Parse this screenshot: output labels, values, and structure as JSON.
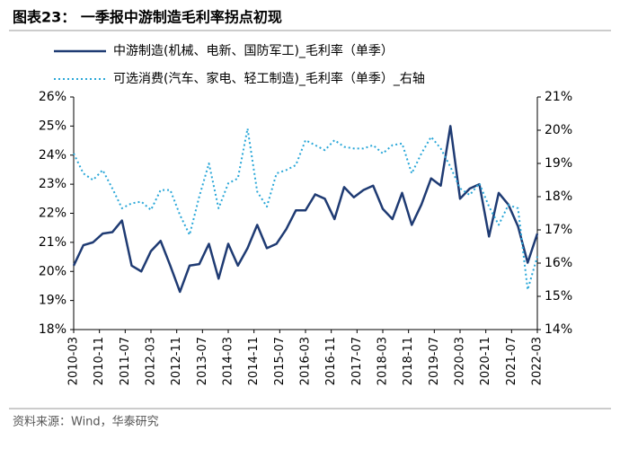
{
  "chart_data": {
    "type": "line",
    "title": "图表23：  一季报中游制造毛利率拐点初现",
    "source": "资料来源：Wind，华泰研究",
    "x": [
      "2010-03",
      "2010-06",
      "2010-09",
      "2010-12",
      "2011-03",
      "2011-06",
      "2011-09",
      "2011-12",
      "2012-03",
      "2012-06",
      "2012-09",
      "2012-12",
      "2013-03",
      "2013-06",
      "2013-09",
      "2013-12",
      "2014-03",
      "2014-06",
      "2014-09",
      "2014-12",
      "2015-03",
      "2015-06",
      "2015-09",
      "2015-12",
      "2016-03",
      "2016-06",
      "2016-09",
      "2016-12",
      "2017-03",
      "2017-06",
      "2017-09",
      "2017-12",
      "2018-03",
      "2018-06",
      "2018-09",
      "2018-12",
      "2019-03",
      "2019-06",
      "2019-09",
      "2019-12",
      "2020-03",
      "2020-06",
      "2020-09",
      "2020-12",
      "2021-03",
      "2021-06",
      "2021-09",
      "2021-12",
      "2022-03"
    ],
    "xlim": [
      "2010-03",
      "2022-03"
    ],
    "xticks": [
      "2010-03",
      "2010-11",
      "2011-07",
      "2012-03",
      "2012-11",
      "2013-07",
      "2014-03",
      "2014-11",
      "2015-07",
      "2016-03",
      "2016-11",
      "2017-07",
      "2018-03",
      "2018-11",
      "2019-07",
      "2020-03",
      "2020-11",
      "2021-07",
      "2022-03"
    ],
    "ylim": [
      18,
      26
    ],
    "yticks": [
      {
        "value": 18,
        "label": "18%"
      },
      {
        "value": 19,
        "label": "19%"
      },
      {
        "value": 20,
        "label": "20%"
      },
      {
        "value": 21,
        "label": "21%"
      },
      {
        "value": 22,
        "label": "22%"
      },
      {
        "value": 23,
        "label": "23%"
      },
      {
        "value": 24,
        "label": "24%"
      },
      {
        "value": 25,
        "label": "25%"
      },
      {
        "value": 26,
        "label": "26%"
      }
    ],
    "y2lim": [
      14,
      21
    ],
    "y2ticks": [
      {
        "value": 14,
        "label": "14%"
      },
      {
        "value": 15,
        "label": "15%"
      },
      {
        "value": 16,
        "label": "16%"
      },
      {
        "value": 17,
        "label": "17%"
      },
      {
        "value": 18,
        "label": "18%"
      },
      {
        "value": 19,
        "label": "19%"
      },
      {
        "value": 20,
        "label": "20%"
      },
      {
        "value": 21,
        "label": "21%"
      }
    ],
    "series": [
      {
        "name": "中游制造(机械、电新、国防军工)_毛利率（单季）",
        "color": "#1f3b73",
        "style": "solid",
        "values": [
          20.2,
          20.9,
          21.0,
          21.3,
          21.35,
          21.75,
          20.2,
          20.0,
          20.7,
          21.05,
          20.2,
          19.3,
          20.2,
          20.25,
          20.95,
          19.75,
          20.95,
          20.2,
          20.8,
          21.6,
          20.8,
          20.95,
          21.45,
          22.1,
          22.1,
          22.65,
          22.5,
          21.8,
          22.9,
          22.55,
          22.8,
          22.95,
          22.15,
          21.8,
          22.7,
          21.6,
          22.3,
          23.2,
          22.95,
          25.0,
          22.5,
          22.85,
          23.0,
          21.2,
          22.7,
          22.3,
          21.55,
          20.3,
          21.3
        ]
      },
      {
        "name": "可选消费(汽车、家电、轻工制造)_毛利率（单季）_右轴",
        "color": "#2aa7d8",
        "style": "dotted",
        "axis": "y2",
        "values": [
          19.3,
          18.7,
          18.5,
          18.8,
          18.25,
          17.65,
          17.8,
          17.85,
          17.6,
          18.2,
          18.2,
          17.45,
          16.85,
          18.0,
          19.0,
          17.65,
          18.4,
          18.55,
          20.05,
          18.15,
          17.7,
          18.7,
          18.8,
          18.95,
          19.7,
          19.55,
          19.4,
          19.7,
          19.5,
          19.45,
          19.45,
          19.55,
          19.3,
          19.55,
          19.6,
          18.7,
          19.3,
          19.8,
          19.45,
          18.9,
          18.25,
          18.05,
          18.4,
          17.7,
          17.15,
          17.75,
          17.65,
          15.2,
          16.2
        ]
      }
    ]
  }
}
